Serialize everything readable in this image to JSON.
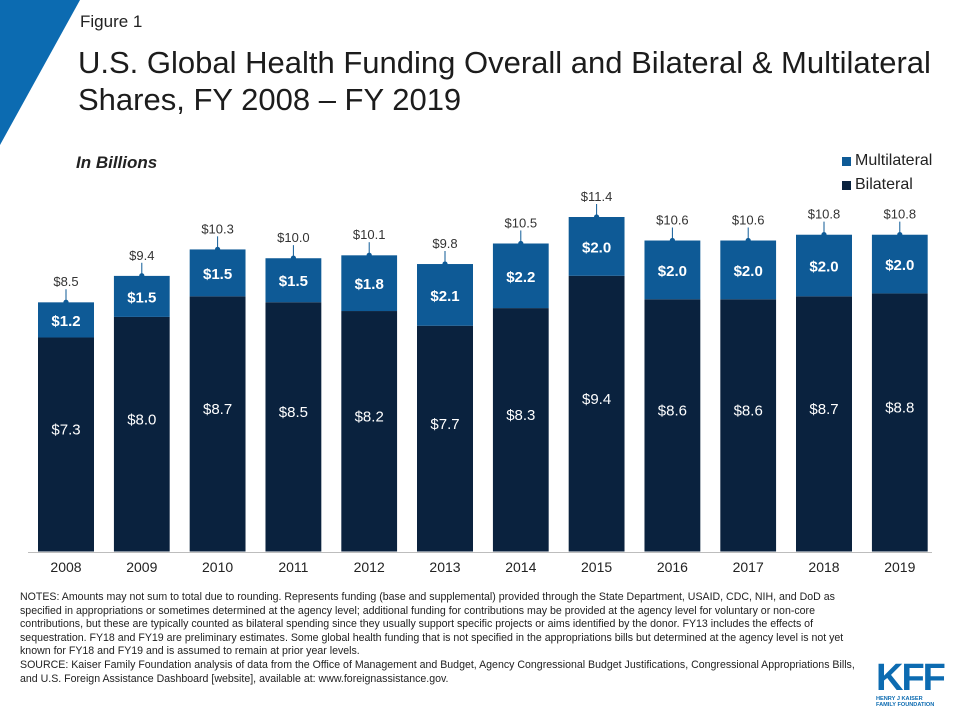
{
  "figure_label": "Figure 1",
  "title": "U.S. Global Health Funding Overall and Bilateral & Multilateral Shares, FY 2008 – FY 2019",
  "subtitle": "In Billions",
  "colors": {
    "bilateral": "#0a223e",
    "multilateral": "#0e5a96",
    "accent": "#0c6bb1",
    "axis": "#bdbdbd"
  },
  "chart_data": {
    "type": "bar",
    "stacked": true,
    "categories": [
      "2008",
      "2009",
      "2010",
      "2011",
      "2012",
      "2013",
      "2014",
      "2015",
      "2016",
      "2017",
      "2018",
      "2019"
    ],
    "series": [
      {
        "name": "Bilateral",
        "values": [
          7.3,
          8.0,
          8.7,
          8.5,
          8.2,
          7.7,
          8.3,
          9.4,
          8.6,
          8.6,
          8.7,
          8.8
        ],
        "labels": [
          "$7.3",
          "$8.0",
          "$8.7",
          "$8.5",
          "$8.2",
          "$7.7",
          "$8.3",
          "$9.4",
          "$8.6",
          "$8.6",
          "$8.7",
          "$8.8"
        ]
      },
      {
        "name": "Multilateral",
        "values": [
          1.2,
          1.5,
          1.5,
          1.5,
          1.8,
          2.1,
          2.2,
          2.0,
          2.0,
          2.0,
          2.0,
          2.0
        ],
        "labels": [
          "$1.2",
          "$1.5",
          "$1.5",
          "$1.5",
          "$1.8",
          "$2.1",
          "$2.2",
          "$2.0",
          "$2.0",
          "$2.0",
          "$2.0",
          "$2.0"
        ]
      }
    ],
    "totals": [
      8.5,
      9.4,
      10.3,
      10.0,
      10.1,
      9.8,
      10.5,
      11.4,
      10.6,
      10.6,
      10.8,
      10.8
    ],
    "total_labels": [
      "$8.5",
      "$9.4",
      "$10.3",
      "$10.0",
      "$10.1",
      "$9.8",
      "$10.5",
      "$11.4",
      "$10.6",
      "$10.6",
      "$10.8",
      "$10.8"
    ],
    "ylim": [
      0,
      11.4
    ],
    "legend": [
      "Multilateral",
      "Bilateral"
    ],
    "legend_position": "top-right",
    "grid": false
  },
  "notes": "NOTES: Amounts may not sum to total due to rounding. Represents funding (base and supplemental) provided through the State Department, USAID, CDC, NIH, and DoD as specified in appropriations or sometimes determined at the agency level; additional funding for contributions may be provided at the agency level for voluntary or non-core contributions, but these are typically counted as bilateral spending since they usually support specific projects or aims identified by the donor. FY13 includes the effects of sequestration. FY18 and FY19 are preliminary estimates. Some global health funding that is not specified in the appropriations bills but determined at the agency level is not yet known for FY18 and FY19 and is assumed to remain at prior year levels.",
  "source": "SOURCE: Kaiser Family Foundation analysis of data from the Office of Management and Budget, Agency Congressional Budget Justifications, Congressional Appropriations Bills, and U.S. Foreign Assistance Dashboard [website], available at: www.foreignassistance.gov.",
  "logo": {
    "mark": "KFF",
    "line1": "HENRY J KAISER",
    "line2": "FAMILY FOUNDATION"
  }
}
